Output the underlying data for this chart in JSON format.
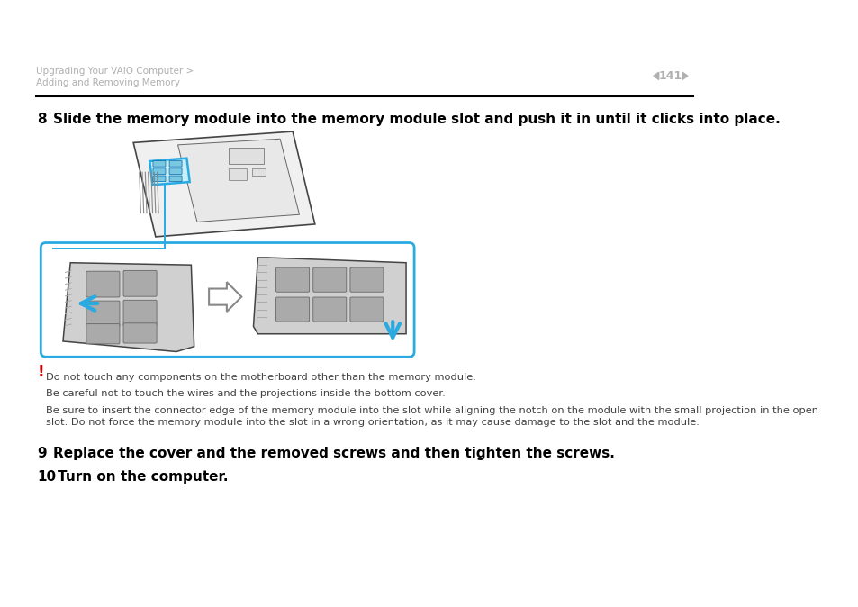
{
  "bg_color": "#ffffff",
  "header_line1": "Upgrading Your VAIO Computer >",
  "header_line2": "Adding and Removing Memory",
  "page_num": "141",
  "header_text_color": "#b0b0b0",
  "page_num_color": "#b0b0b0",
  "step8_num": "8",
  "step8_text": "Slide the memory module into the memory module slot and push it in until it clicks into place.",
  "step9_num": "9",
  "step9_text": "Replace the cover and the removed screws and then tighten the screws.",
  "step10_num": "10",
  "step10_text": "Turn on the computer.",
  "warning_symbol": "!",
  "warning_color": "#cc0000",
  "warning_line1": "Do not touch any components on the motherboard other than the memory module.",
  "warning_line2": "Be careful not to touch the wires and the projections inside the bottom cover.",
  "warning_line3a": "Be sure to insert the connector edge of the memory module into the slot while aligning the notch on the module with the small projection in the open",
  "warning_line3b": "slot. Do not force the memory module into the slot in a wrong orientation, as it may cause damage to the slot and the module.",
  "small_text_color": "#404040",
  "step_text_color": "#000000",
  "cyan_color": "#29abe2",
  "divider_color": "#000000"
}
